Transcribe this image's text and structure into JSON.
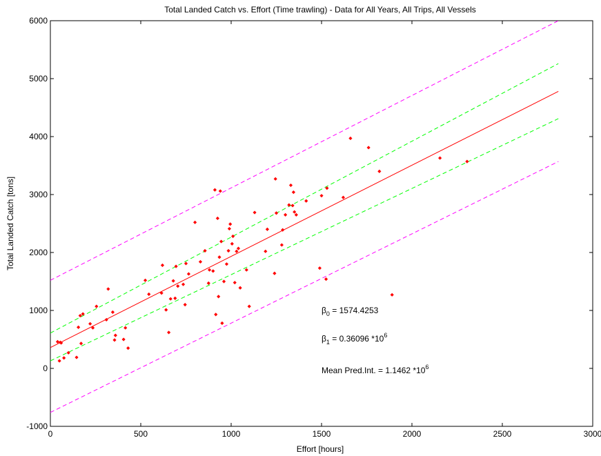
{
  "chart_data": {
    "type": "scatter",
    "title": "Total Landed Catch vs. Effort (Time trawling) - Data for All Years, All Trips, All Vessels",
    "xlabel": "Effort [hours]",
    "ylabel": "Total Landed Catch [tons]",
    "xlim": [
      0,
      3000
    ],
    "ylim": [
      -1000,
      6000
    ],
    "xticks": [
      0,
      500,
      1000,
      1500,
      2000,
      2500,
      3000
    ],
    "yticks": [
      -1000,
      0,
      1000,
      2000,
      3000,
      4000,
      5000,
      6000
    ],
    "grid": false,
    "points": {
      "color": "#ff0000",
      "x": [
        40,
        50,
        55,
        60,
        75,
        100,
        145,
        155,
        165,
        170,
        180,
        220,
        235,
        255,
        310,
        320,
        345,
        355,
        360,
        405,
        415,
        430,
        525,
        545,
        615,
        620,
        640,
        655,
        665,
        680,
        690,
        695,
        705,
        735,
        745,
        750,
        765,
        800,
        830,
        855,
        875,
        880,
        900,
        910,
        915,
        925,
        930,
        935,
        940,
        945,
        950,
        960,
        975,
        985,
        990,
        995,
        1005,
        1010,
        1020,
        1030,
        1040,
        1050,
        1085,
        1100,
        1130,
        1190,
        1200,
        1240,
        1245,
        1250,
        1280,
        1285,
        1300,
        1320,
        1330,
        1340,
        1345,
        1350,
        1360,
        1415,
        1490,
        1500,
        1525,
        1530,
        1620,
        1660,
        1760,
        1820,
        1890,
        2155,
        2305
      ],
      "y": [
        460,
        130,
        450,
        440,
        180,
        270,
        190,
        710,
        910,
        430,
        940,
        770,
        700,
        1070,
        840,
        1370,
        970,
        490,
        570,
        500,
        700,
        350,
        1520,
        1280,
        1300,
        1780,
        1010,
        620,
        1200,
        1510,
        1210,
        1760,
        1420,
        1450,
        1100,
        1810,
        1630,
        2520,
        1840,
        2030,
        1470,
        1700,
        1680,
        3080,
        930,
        2590,
        1240,
        1920,
        3060,
        2190,
        780,
        1500,
        1800,
        2030,
        2410,
        2490,
        2150,
        2280,
        1480,
        2020,
        2070,
        1390,
        1700,
        1070,
        2690,
        2020,
        2400,
        1640,
        3270,
        2680,
        2130,
        2390,
        2650,
        2820,
        3160,
        2810,
        3040,
        2700,
        2650,
        2890,
        1730,
        2980,
        1540,
        3110,
        2950,
        3970,
        3810,
        3400,
        1270,
        3630,
        3570
      ]
    },
    "lines": [
      {
        "role": "fit",
        "color": "#ff0000",
        "dash": "solid",
        "x": [
          0,
          2810
        ],
        "y": [
          360,
          4780
        ]
      },
      {
        "role": "confidence-upper",
        "color": "#00ff00",
        "dash": "dashed",
        "x": [
          0,
          2810
        ],
        "y": [
          610,
          5260
        ]
      },
      {
        "role": "confidence-lower",
        "color": "#00ff00",
        "dash": "dashed",
        "x": [
          0,
          2810
        ],
        "y": [
          130,
          4310
        ]
      },
      {
        "role": "prediction-upper",
        "color": "#ff00ff",
        "dash": "dashed",
        "x": [
          0,
          2810
        ],
        "y": [
          1520,
          6000
        ]
      },
      {
        "role": "prediction-lower",
        "color": "#ff00ff",
        "dash": "dashed",
        "x": [
          0,
          2810
        ],
        "y": [
          -760,
          3570
        ]
      }
    ],
    "annotations": {
      "beta0": {
        "symbol": "β",
        "sub": "0",
        "text": " = 1574.4253"
      },
      "beta1": {
        "symbol": "β",
        "sub": "1",
        "text": " = 0.36096 *10",
        "sup": "6"
      },
      "mean_pred": {
        "text": "Mean Pred.Int. = 1.1462 *10",
        "sup": "6"
      }
    }
  }
}
